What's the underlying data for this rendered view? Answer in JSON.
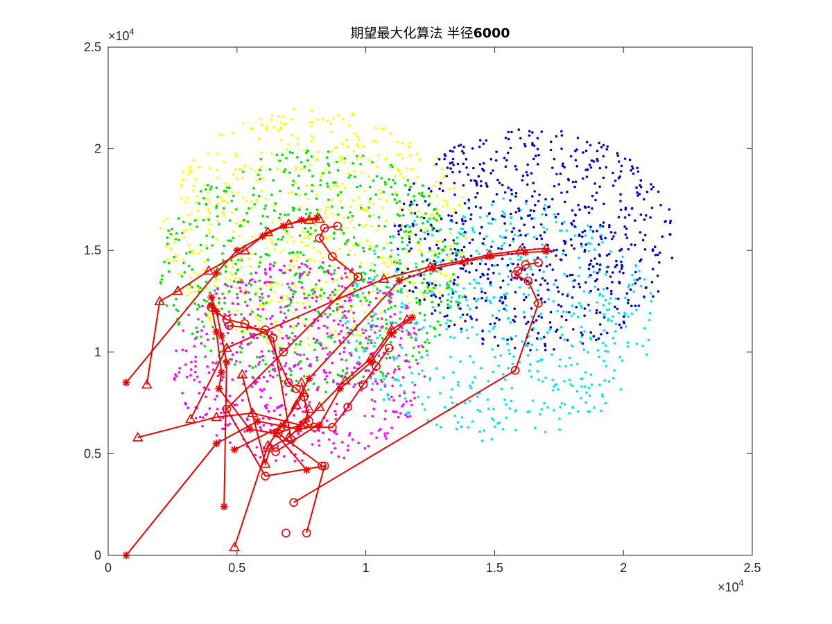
{
  "chart_data": {
    "type": "scatter",
    "title_prefix": "期望最大化算法 半径",
    "title_bold": "6000",
    "x_exponent_label": "×10",
    "x_exponent_power": "4",
    "y_exponent_label": "×10",
    "y_exponent_power": "4",
    "xlim": [
      0,
      25000
    ],
    "ylim": [
      0,
      25000
    ],
    "xticks": [
      0,
      5000,
      10000,
      15000,
      20000,
      25000
    ],
    "xtick_labels": [
      "0",
      "0.5",
      "1",
      "1.5",
      "2",
      "2.5"
    ],
    "yticks": [
      0,
      5000,
      10000,
      15000,
      20000,
      25000
    ],
    "ytick_labels": [
      "0",
      "0.5",
      "1",
      "1.5",
      "2",
      "2.5"
    ],
    "grid": false,
    "box": true,
    "clusters": [
      {
        "color": "#ffff00",
        "center": [
          8000,
          16000
        ],
        "radius": 6000,
        "count": 700
      },
      {
        "color": "#00e000",
        "center": [
          8000,
          14000
        ],
        "radius": 6000,
        "count": 700
      },
      {
        "color": "#ff00ff",
        "center": [
          7500,
          9500
        ],
        "radius": 5000,
        "count": 600
      },
      {
        "color": "#00e5ee",
        "center": [
          15200,
          11600
        ],
        "radius": 6000,
        "count": 600
      },
      {
        "color": "#0000c8",
        "center": [
          16500,
          15500
        ],
        "radius": 5500,
        "count": 700
      }
    ],
    "tracks": [
      {
        "marker": "star",
        "color": "#ee0000",
        "points": [
          [
            700,
            8500
          ],
          [
            4200,
            13900
          ],
          [
            5000,
            15000
          ],
          [
            6000,
            15700
          ],
          [
            6800,
            16200
          ],
          [
            7500,
            16500
          ],
          [
            8100,
            16600
          ]
        ]
      },
      {
        "marker": "triangle",
        "color": "#ee0000",
        "points": [
          [
            1500,
            8400
          ],
          [
            2000,
            12500
          ],
          [
            2700,
            13000
          ],
          [
            3900,
            14000
          ],
          [
            5300,
            15000
          ],
          [
            6200,
            15900
          ],
          [
            7000,
            16300
          ],
          [
            7800,
            16500
          ],
          [
            8200,
            16550
          ]
        ]
      },
      {
        "marker": "circle",
        "color": "#ee0000",
        "points": [
          [
            7200,
            2600
          ],
          [
            15800,
            9100
          ],
          [
            16700,
            12400
          ],
          [
            16300,
            13500
          ],
          [
            15800,
            13800
          ],
          [
            15900,
            14000
          ],
          [
            16200,
            14300
          ],
          [
            16700,
            14400
          ]
        ]
      },
      {
        "marker": "triangle",
        "color": "#ee0000",
        "points": [
          [
            1150,
            5800
          ],
          [
            4200,
            6800
          ],
          [
            5600,
            7000
          ],
          [
            7500,
            6400
          ],
          [
            8200,
            7300
          ],
          [
            9200,
            8600
          ],
          [
            10200,
            9700
          ],
          [
            11000,
            11100
          ],
          [
            11600,
            11600
          ]
        ]
      },
      {
        "marker": "star",
        "color": "#ee0000",
        "points": [
          [
            700,
            0
          ],
          [
            4200,
            5500
          ],
          [
            5800,
            6600
          ],
          [
            7400,
            6200
          ],
          [
            8200,
            6400
          ],
          [
            9000,
            8200
          ],
          [
            10200,
            9500
          ],
          [
            11000,
            10900
          ],
          [
            11800,
            11700
          ]
        ]
      },
      {
        "marker": "star",
        "color": "#ee0000",
        "points": [
          [
            4500,
            2400
          ],
          [
            4600,
            9500
          ],
          [
            4400,
            10800
          ],
          [
            4200,
            12000
          ],
          [
            4000,
            12700
          ]
        ]
      },
      {
        "marker": "triangle",
        "color": "#ee0000",
        "points": [
          [
            4900,
            400
          ],
          [
            6200,
            5400
          ],
          [
            6700,
            6300
          ],
          [
            7300,
            7400
          ],
          [
            7600,
            8000
          ],
          [
            7500,
            8500
          ]
        ]
      },
      {
        "marker": "circle",
        "color": "#ee0000",
        "points": [
          [
            7700,
            1100
          ],
          [
            8400,
            4400
          ],
          [
            6100,
            3900
          ],
          [
            4600,
            7200
          ],
          [
            6800,
            10000
          ],
          [
            9700,
            13700
          ],
          [
            8700,
            14700
          ],
          [
            8200,
            15600
          ],
          [
            8400,
            16100
          ],
          [
            8900,
            16200
          ]
        ]
      },
      {
        "marker": "triangle",
        "color": "#ee0000",
        "points": [
          [
            3200,
            6700
          ],
          [
            4600,
            10200
          ],
          [
            10700,
            13600
          ],
          [
            12500,
            14200
          ],
          [
            13800,
            14500
          ],
          [
            14800,
            14800
          ],
          [
            16000,
            15000
          ],
          [
            17000,
            15100
          ]
        ]
      },
      {
        "marker": "star",
        "color": "#ee0000",
        "points": [
          [
            4900,
            5200
          ],
          [
            6800,
            6400
          ],
          [
            7800,
            8700
          ],
          [
            11300,
            13500
          ],
          [
            12600,
            14100
          ],
          [
            14800,
            14700
          ],
          [
            16200,
            14900
          ],
          [
            17000,
            14950
          ]
        ]
      },
      {
        "marker": "circle",
        "color": "#ee0000",
        "points": [
          [
            6500,
            5100
          ],
          [
            8000,
            6300
          ],
          [
            8700,
            6300
          ],
          [
            9300,
            7300
          ],
          [
            9900,
            8400
          ],
          [
            10400,
            9300
          ],
          [
            10900,
            10200
          ]
        ]
      },
      {
        "marker": "circle",
        "color": "#ee0000",
        "points": [
          [
            6900,
            1100
          ]
        ]
      },
      {
        "marker": "triangle",
        "color": "#ee0000",
        "points": [
          [
            5200,
            8900
          ],
          [
            6100,
            4500
          ],
          [
            6300,
            5300
          ],
          [
            7000,
            5800
          ],
          [
            7600,
            6500
          ],
          [
            7800,
            7200
          ]
        ]
      },
      {
        "marker": "star",
        "color": "#ee0000",
        "points": [
          [
            7700,
            4200
          ],
          [
            6500,
            6000
          ],
          [
            5500,
            6200
          ],
          [
            4300,
            8200
          ],
          [
            4400,
            9000
          ],
          [
            4200,
            11000
          ],
          [
            4000,
            12300
          ]
        ]
      },
      {
        "marker": "circle",
        "color": "#ee0000",
        "points": [
          [
            7100,
            5700
          ],
          [
            6400,
            10700
          ],
          [
            5300,
            11400
          ],
          [
            4600,
            11600
          ],
          [
            4000,
            12200
          ]
        ]
      },
      {
        "marker": "circle",
        "color": "#ee0000",
        "points": [
          [
            8300,
            4400
          ],
          [
            6600,
            6000
          ],
          [
            7800,
            6600
          ],
          [
            7600,
            7800
          ],
          [
            7300,
            8200
          ],
          [
            7000,
            8500
          ],
          [
            6100,
            11100
          ],
          [
            4700,
            11300
          ]
        ]
      }
    ]
  }
}
